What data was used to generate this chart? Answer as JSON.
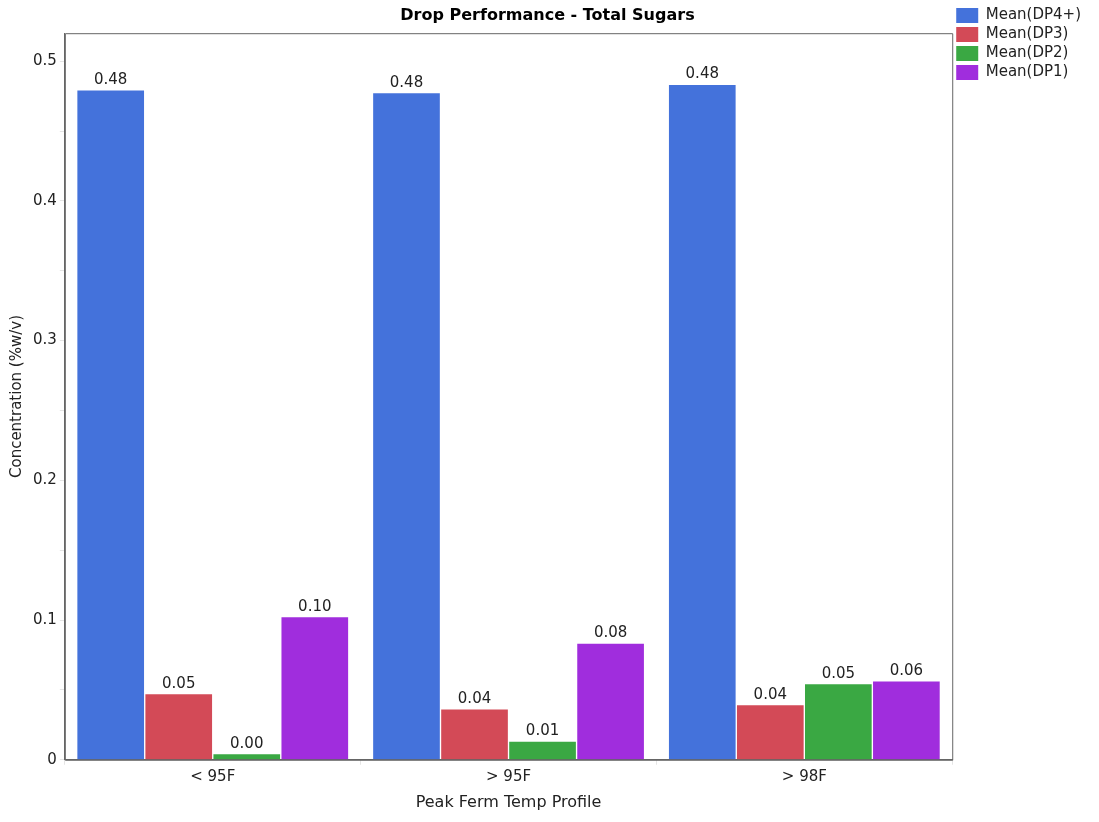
{
  "chart_data": {
    "type": "bar",
    "title": "Drop Performance - Total Sugars",
    "xlabel": "Peak Ferm Temp Profile",
    "ylabel": "Concentration (%w/v)",
    "categories": [
      "< 95F",
      "> 95F",
      "> 98F"
    ],
    "series": [
      {
        "name": "Mean(DP4+)",
        "color": "#4472db",
        "values": [
          0.479,
          0.477,
          0.483
        ],
        "value_labels": [
          "0.48",
          "0.48",
          "0.48"
        ]
      },
      {
        "name": "Mean(DP3)",
        "color": "#d34a57",
        "values": [
          0.047,
          0.036,
          0.039
        ],
        "value_labels": [
          "0.05",
          "0.04",
          "0.04"
        ]
      },
      {
        "name": "Mean(DP2)",
        "color": "#3aa843",
        "values": [
          0.004,
          0.013,
          0.054
        ],
        "value_labels": [
          "0.00",
          "0.01",
          "0.05"
        ]
      },
      {
        "name": "Mean(DP1)",
        "color": "#a02ddd",
        "values": [
          0.102,
          0.083,
          0.056
        ],
        "value_labels": [
          "0.10",
          "0.08",
          "0.06"
        ]
      }
    ],
    "ylim": [
      0,
      0.52
    ],
    "yticks": [
      0,
      {
        "value": 0.05,
        "label": null
      },
      0.1,
      {
        "value": 0.15,
        "label": null
      },
      0.2,
      {
        "value": 0.25,
        "label": null
      },
      0.3,
      {
        "value": 0.35,
        "label": null
      },
      0.4,
      {
        "value": 0.45,
        "label": null
      },
      0.5
    ],
    "grid": false,
    "legend": "top right"
  }
}
